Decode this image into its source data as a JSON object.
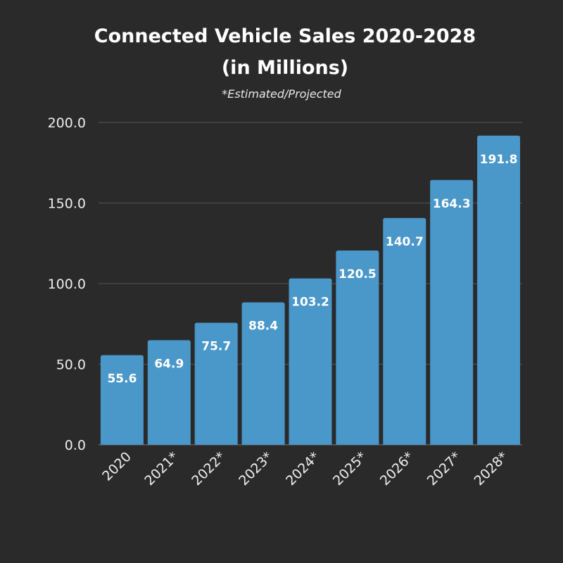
{
  "chart_data": {
    "type": "bar",
    "title": "Connected Vehicle Sales 2020-2028",
    "title_line2": "(in Millions)",
    "subtitle": "*Estimated/Projected",
    "categories": [
      "2020",
      "2021*",
      "2022*",
      "2023*",
      "2024*",
      "2025*",
      "2026*",
      "2027*",
      "2028*"
    ],
    "values": [
      55.6,
      64.9,
      75.7,
      88.4,
      103.2,
      120.5,
      140.7,
      164.3,
      191.8
    ],
    "data_labels": [
      "55.6",
      "64.9",
      "75.7",
      "88.4",
      "103.2",
      "120.5",
      "140.7",
      "164.3",
      "191.8"
    ],
    "yticks": [
      "0.0",
      "50.0",
      "100.0",
      "150.0",
      "200.0"
    ],
    "ylim": [
      0,
      200
    ],
    "xlabel": "",
    "ylabel": "",
    "grid": true,
    "colors": {
      "bar": "#4a97c9",
      "background": "#2a2a2a",
      "grid": "#555555"
    }
  }
}
